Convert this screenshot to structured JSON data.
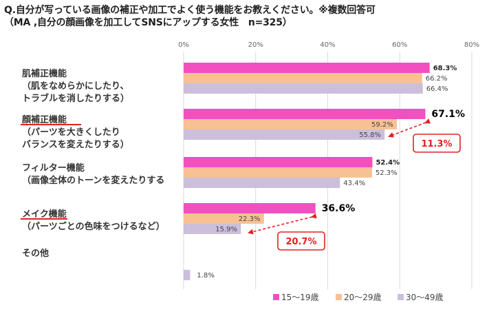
{
  "title_line1": "Q.自分が写っている画像の補正や加工でよく使う機能をお教えください。※複数回答可",
  "title_line2": "（MA ,自分の顔画像を加工してSNSにアップする女性　n=325）",
  "colors": {
    "series_15_19": "#f24fc0",
    "series_20_29": "#f7c194",
    "series_30_49": "#cbbfdc",
    "grid": "#d9d9d9",
    "annotation": "#e02020"
  },
  "chart_data": {
    "type": "bar",
    "orientation": "horizontal",
    "xlim": [
      0,
      80
    ],
    "xticks": [
      "0%",
      "20%",
      "40%",
      "60%",
      "80%"
    ],
    "legend_position": "bottom",
    "categories": [
      {
        "lines": [
          "肌補正機能",
          "（肌をなめらかにしたり、",
          "トラブルを消したりする）"
        ]
      },
      {
        "lines": [
          "顔補正機能",
          "（パーツを大きくしたり",
          "バランスを変えたりする）"
        ]
      },
      {
        "lines": [
          "フィルター機能",
          "（画像全体のトーンを変えたりする"
        ]
      },
      {
        "lines": [
          "メイク機能",
          "（パーツごとの色味をつけるなど）"
        ]
      },
      {
        "lines": [
          "その他"
        ]
      }
    ],
    "series": [
      {
        "name": "15〜19歳",
        "values": [
          68.3,
          67.1,
          52.4,
          36.6,
          null
        ],
        "labels": [
          "68.3%",
          "67.1%",
          "52.4%",
          "36.6%",
          ""
        ]
      },
      {
        "name": "20〜29歳",
        "values": [
          66.2,
          59.2,
          52.3,
          22.3,
          null
        ],
        "labels": [
          "66.2%",
          "59.2%",
          "52.3%",
          "22.3%",
          ""
        ]
      },
      {
        "name": "30〜49歳",
        "values": [
          66.4,
          55.8,
          43.4,
          15.9,
          1.8
        ],
        "labels": [
          "66.4%",
          "55.8%",
          "43.4%",
          "15.9%",
          "1.8%"
        ]
      }
    ],
    "annotations": [
      {
        "text": "11.3%",
        "category_index": 1
      },
      {
        "text": "20.7%",
        "category_index": 3
      }
    ]
  }
}
